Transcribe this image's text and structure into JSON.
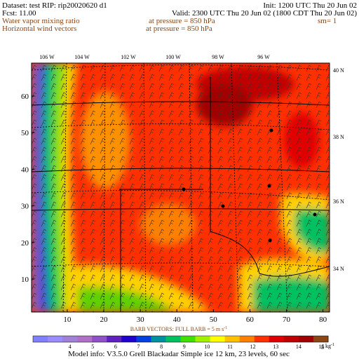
{
  "header": {
    "dataset": "Dataset: test  RIP: rip20020620 d1",
    "init": "Init: 1200 UTC Thu 20 Jun 02",
    "fcst": "Fcst:    11.00",
    "valid": "Valid: 2300 UTC Thu 20 Jun 02 (1800 CDT Thu 20 Jun 02)",
    "field1": "Water vapor mixing ratio",
    "level1": "at pressure =  850 hPa",
    "smooth": "sm= 1",
    "field2": "Horizontal wind vectors",
    "level2": "at pressure =  850 hPa"
  },
  "map": {
    "lon_labels": [
      "106 W",
      "104 W",
      "102 W",
      "100 W",
      "98 W",
      "96 W"
    ],
    "lat_labels": [
      "40 N",
      "38 N",
      "36 N",
      "34 N"
    ],
    "x_ticks": [
      10,
      20,
      30,
      40,
      50,
      60,
      70,
      80
    ],
    "y_ticks": [
      10,
      20,
      30,
      40,
      50,
      60
    ]
  },
  "legend": {
    "barb_note": "BARB VECTORS:  FULL BARB = 5 m s",
    "barb_unit_exp": "-1",
    "colorbar_labels": [
      4,
      5,
      6,
      7,
      8,
      9,
      10,
      11,
      12,
      13,
      14,
      15
    ],
    "unit": "g kg",
    "unit_exp": "-1"
  },
  "footer": "Model info: V3.5.0   Grell   Blackadar   Simple ice   12 km, 23 levels,  60 sec"
}
